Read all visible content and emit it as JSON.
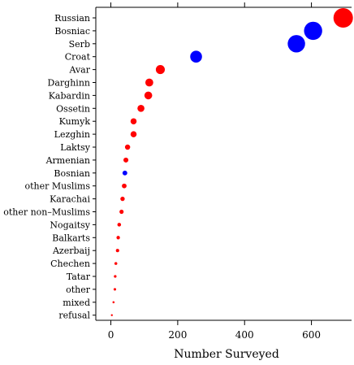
{
  "chart_data": {
    "type": "scatter",
    "title": "",
    "xlabel": "Number Surveyed",
    "ylabel": "",
    "xlim": [
      -45,
      720
    ],
    "x_ticks": [
      0,
      200,
      400,
      600
    ],
    "x_tick_labels": [
      "0",
      "200",
      "400",
      "600"
    ],
    "grid": false,
    "legend": "none",
    "colors": {
      "red": "#ff0000",
      "blue": "#0000ff",
      "axis": "#000000"
    },
    "categories": [
      "Russian",
      "Bosniac",
      "Serb",
      "Croat",
      "Avar",
      "Darghinn",
      "Kabardin",
      "Ossetin",
      "Kumyk",
      "Lezghin",
      "Laktsy",
      "Armenian",
      "Bosnian",
      "other Muslims",
      "Karachai",
      "other non–Muslims",
      "Nogaitsy",
      "Balkarts",
      "Azerbaij",
      "Chechen",
      "Tatar",
      "other",
      "mixed",
      "refusal"
    ],
    "points": [
      {
        "label": "Russian",
        "value": 695,
        "color": "red"
      },
      {
        "label": "Bosniac",
        "value": 605,
        "color": "blue"
      },
      {
        "label": "Serb",
        "value": 555,
        "color": "blue"
      },
      {
        "label": "Croat",
        "value": 255,
        "color": "blue"
      },
      {
        "label": "Avar",
        "value": 148,
        "color": "red"
      },
      {
        "label": "Darghinn",
        "value": 115,
        "color": "red"
      },
      {
        "label": "Kabardin",
        "value": 112,
        "color": "red"
      },
      {
        "label": "Ossetin",
        "value": 90,
        "color": "red"
      },
      {
        "label": "Kumyk",
        "value": 68,
        "color": "red"
      },
      {
        "label": "Lezghin",
        "value": 68,
        "color": "red"
      },
      {
        "label": "Laktsy",
        "value": 50,
        "color": "red"
      },
      {
        "label": "Armenian",
        "value": 45,
        "color": "red"
      },
      {
        "label": "Bosnian",
        "value": 42,
        "color": "blue"
      },
      {
        "label": "other Muslims",
        "value": 40,
        "color": "red"
      },
      {
        "label": "Karachai",
        "value": 35,
        "color": "red"
      },
      {
        "label": "other non–Muslims",
        "value": 32,
        "color": "red"
      },
      {
        "label": "Nogaitsy",
        "value": 25,
        "color": "red"
      },
      {
        "label": "Balkarts",
        "value": 22,
        "color": "red"
      },
      {
        "label": "Azerbaij",
        "value": 20,
        "color": "red"
      },
      {
        "label": "Chechen",
        "value": 15,
        "color": "red"
      },
      {
        "label": "Tatar",
        "value": 13,
        "color": "red"
      },
      {
        "label": "other",
        "value": 12,
        "color": "red"
      },
      {
        "label": "mixed",
        "value": 8,
        "color": "red"
      },
      {
        "label": "refusal",
        "value": 3,
        "color": "red"
      }
    ]
  }
}
